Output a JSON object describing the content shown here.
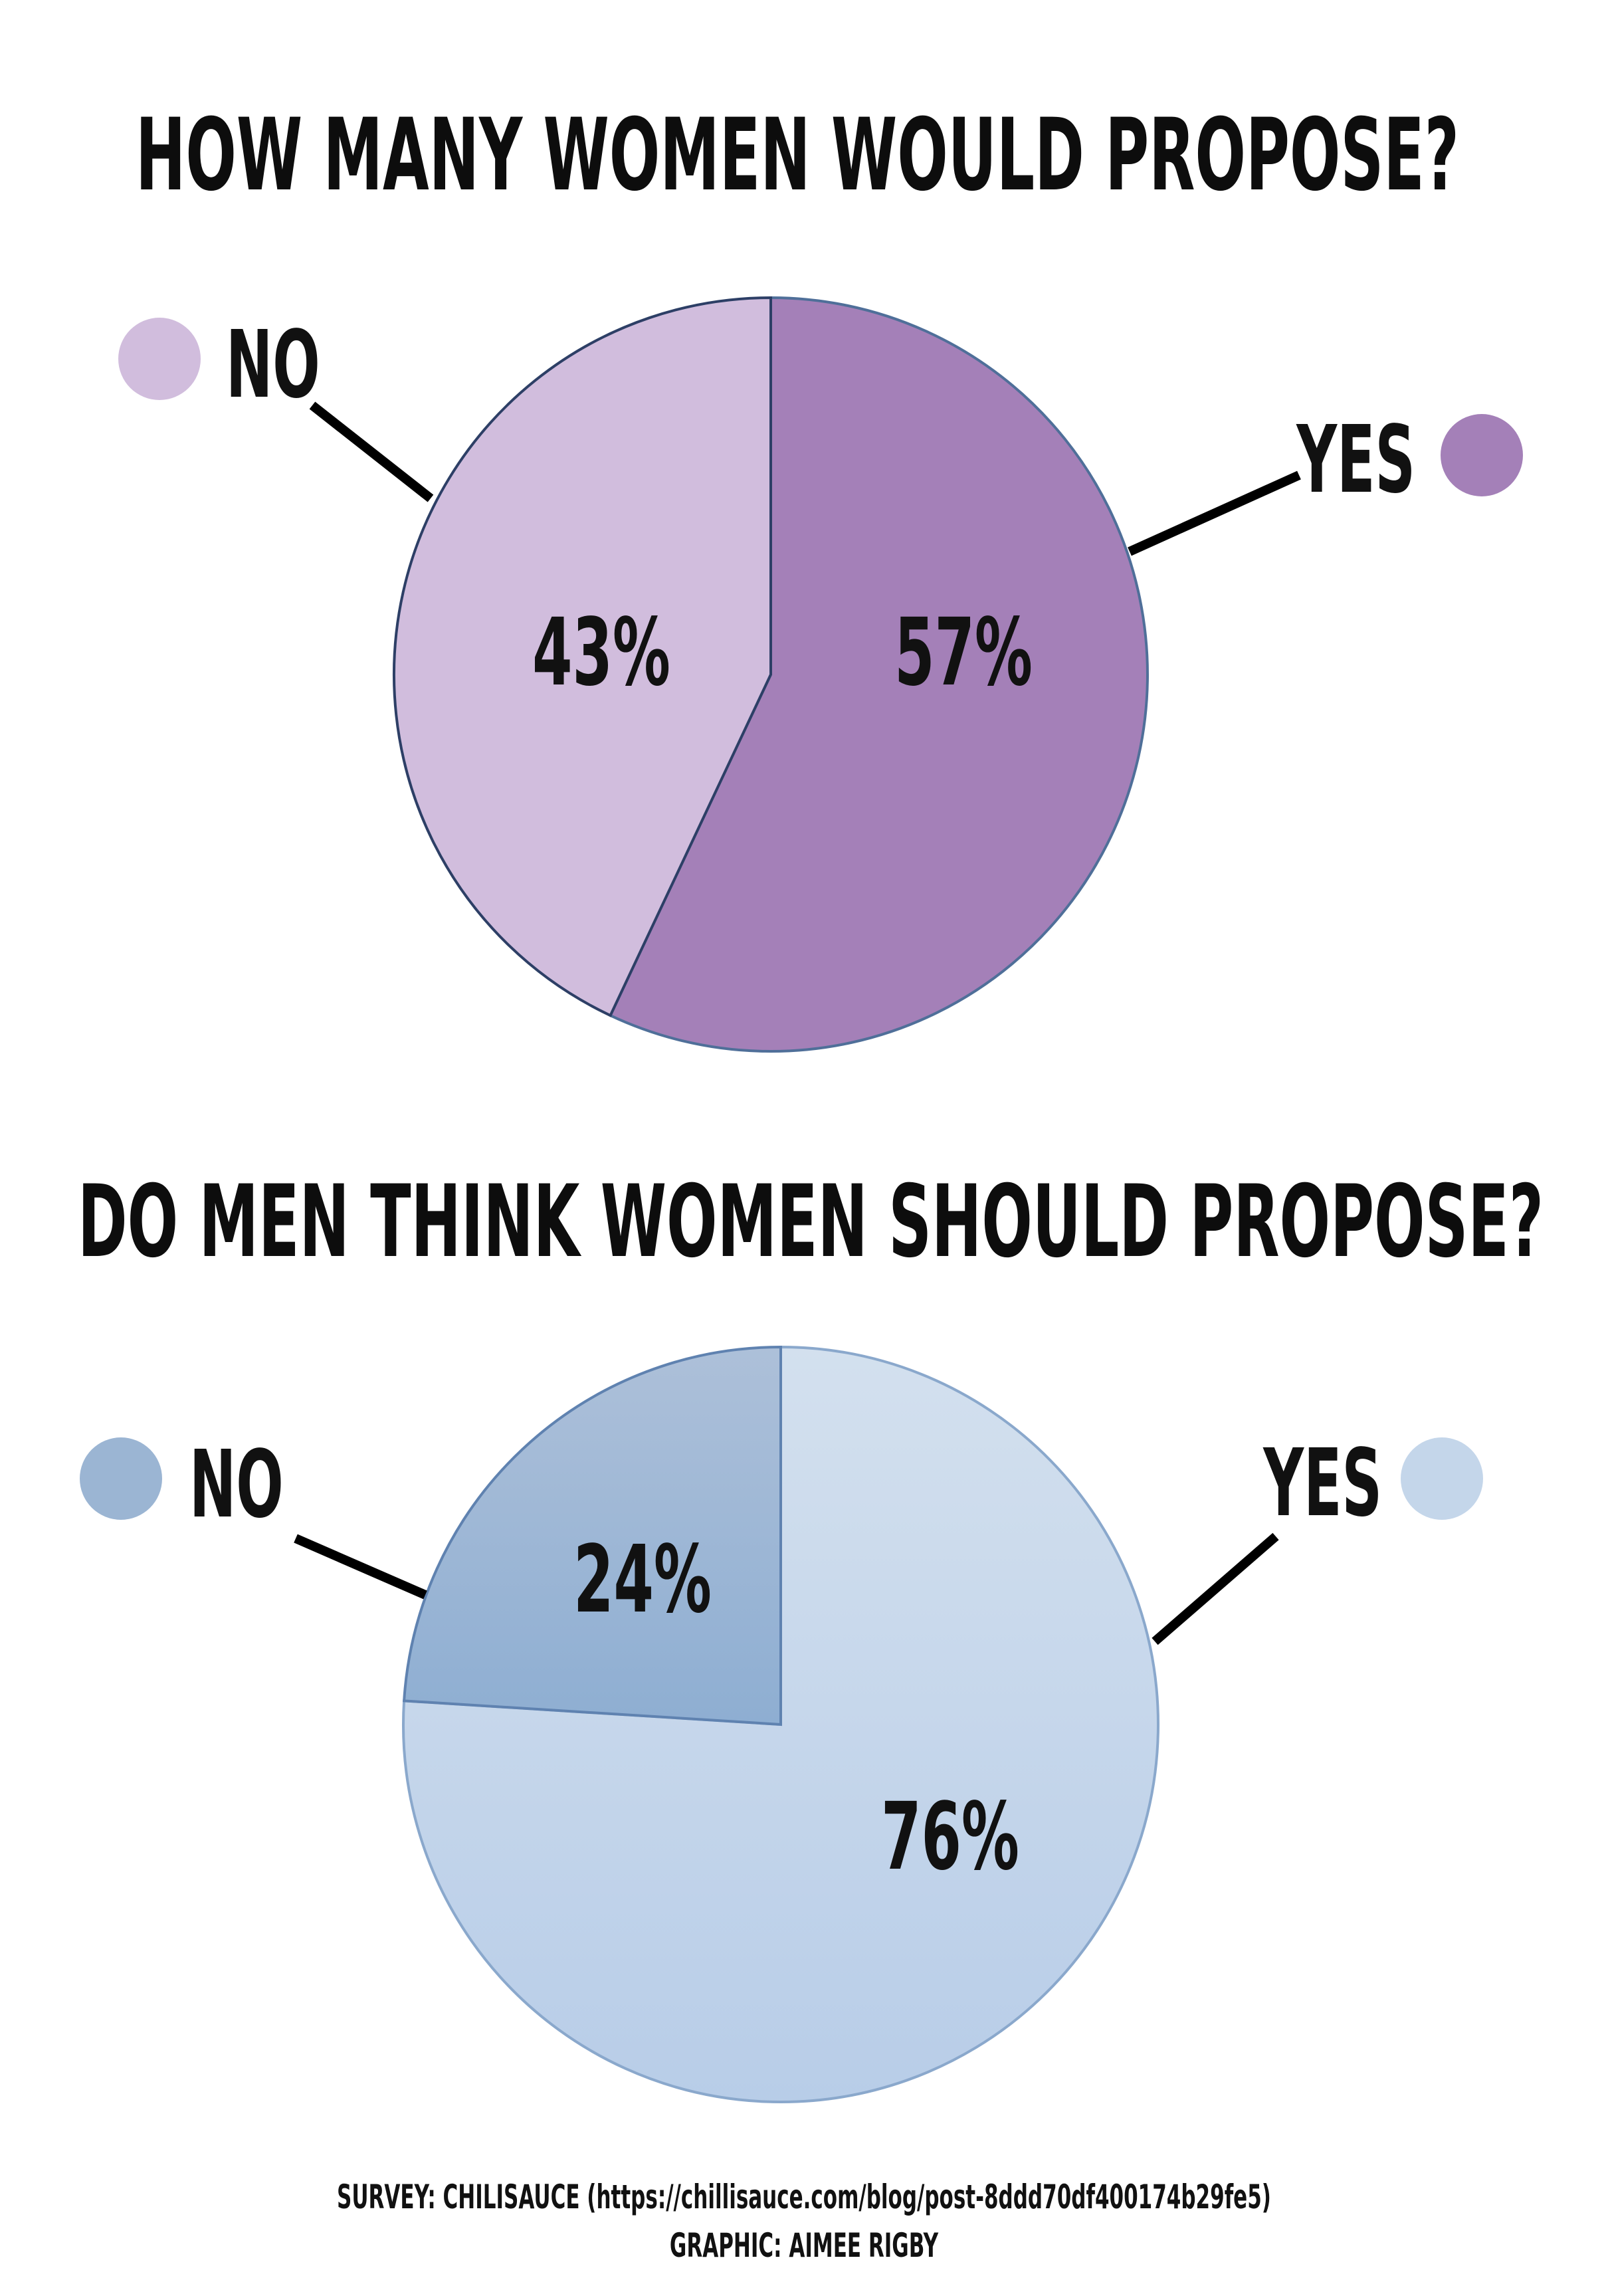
{
  "chart_data": [
    {
      "type": "pie",
      "title": "HOW MANY WOMEN WOULD PROPOSE?",
      "slices": [
        {
          "label": "YES",
          "value": 57,
          "value_label": "57%",
          "color": "#a480b8"
        },
        {
          "label": "NO",
          "value": 43,
          "value_label": "43%",
          "color": "#d1bddd"
        }
      ],
      "legend": "labels beside chart with callout lines"
    },
    {
      "type": "pie",
      "title": "DO MEN THINK WOMEN SHOULD PROPOSE?",
      "slices": [
        {
          "label": "YES",
          "value": 76,
          "value_label": "76%",
          "color": "#c4d6ea"
        },
        {
          "label": "NO",
          "value": 24,
          "value_label": "24%",
          "color": "#9bb5d3"
        }
      ],
      "legend": "labels beside chart with callout lines"
    }
  ],
  "footer": {
    "source": "SURVEY: CHILISAUCE (https://chillisauce.com/blog/post-8ddd70df400174b29fe5)",
    "credit": "GRAPHIC: AIMEE RIGBY"
  }
}
